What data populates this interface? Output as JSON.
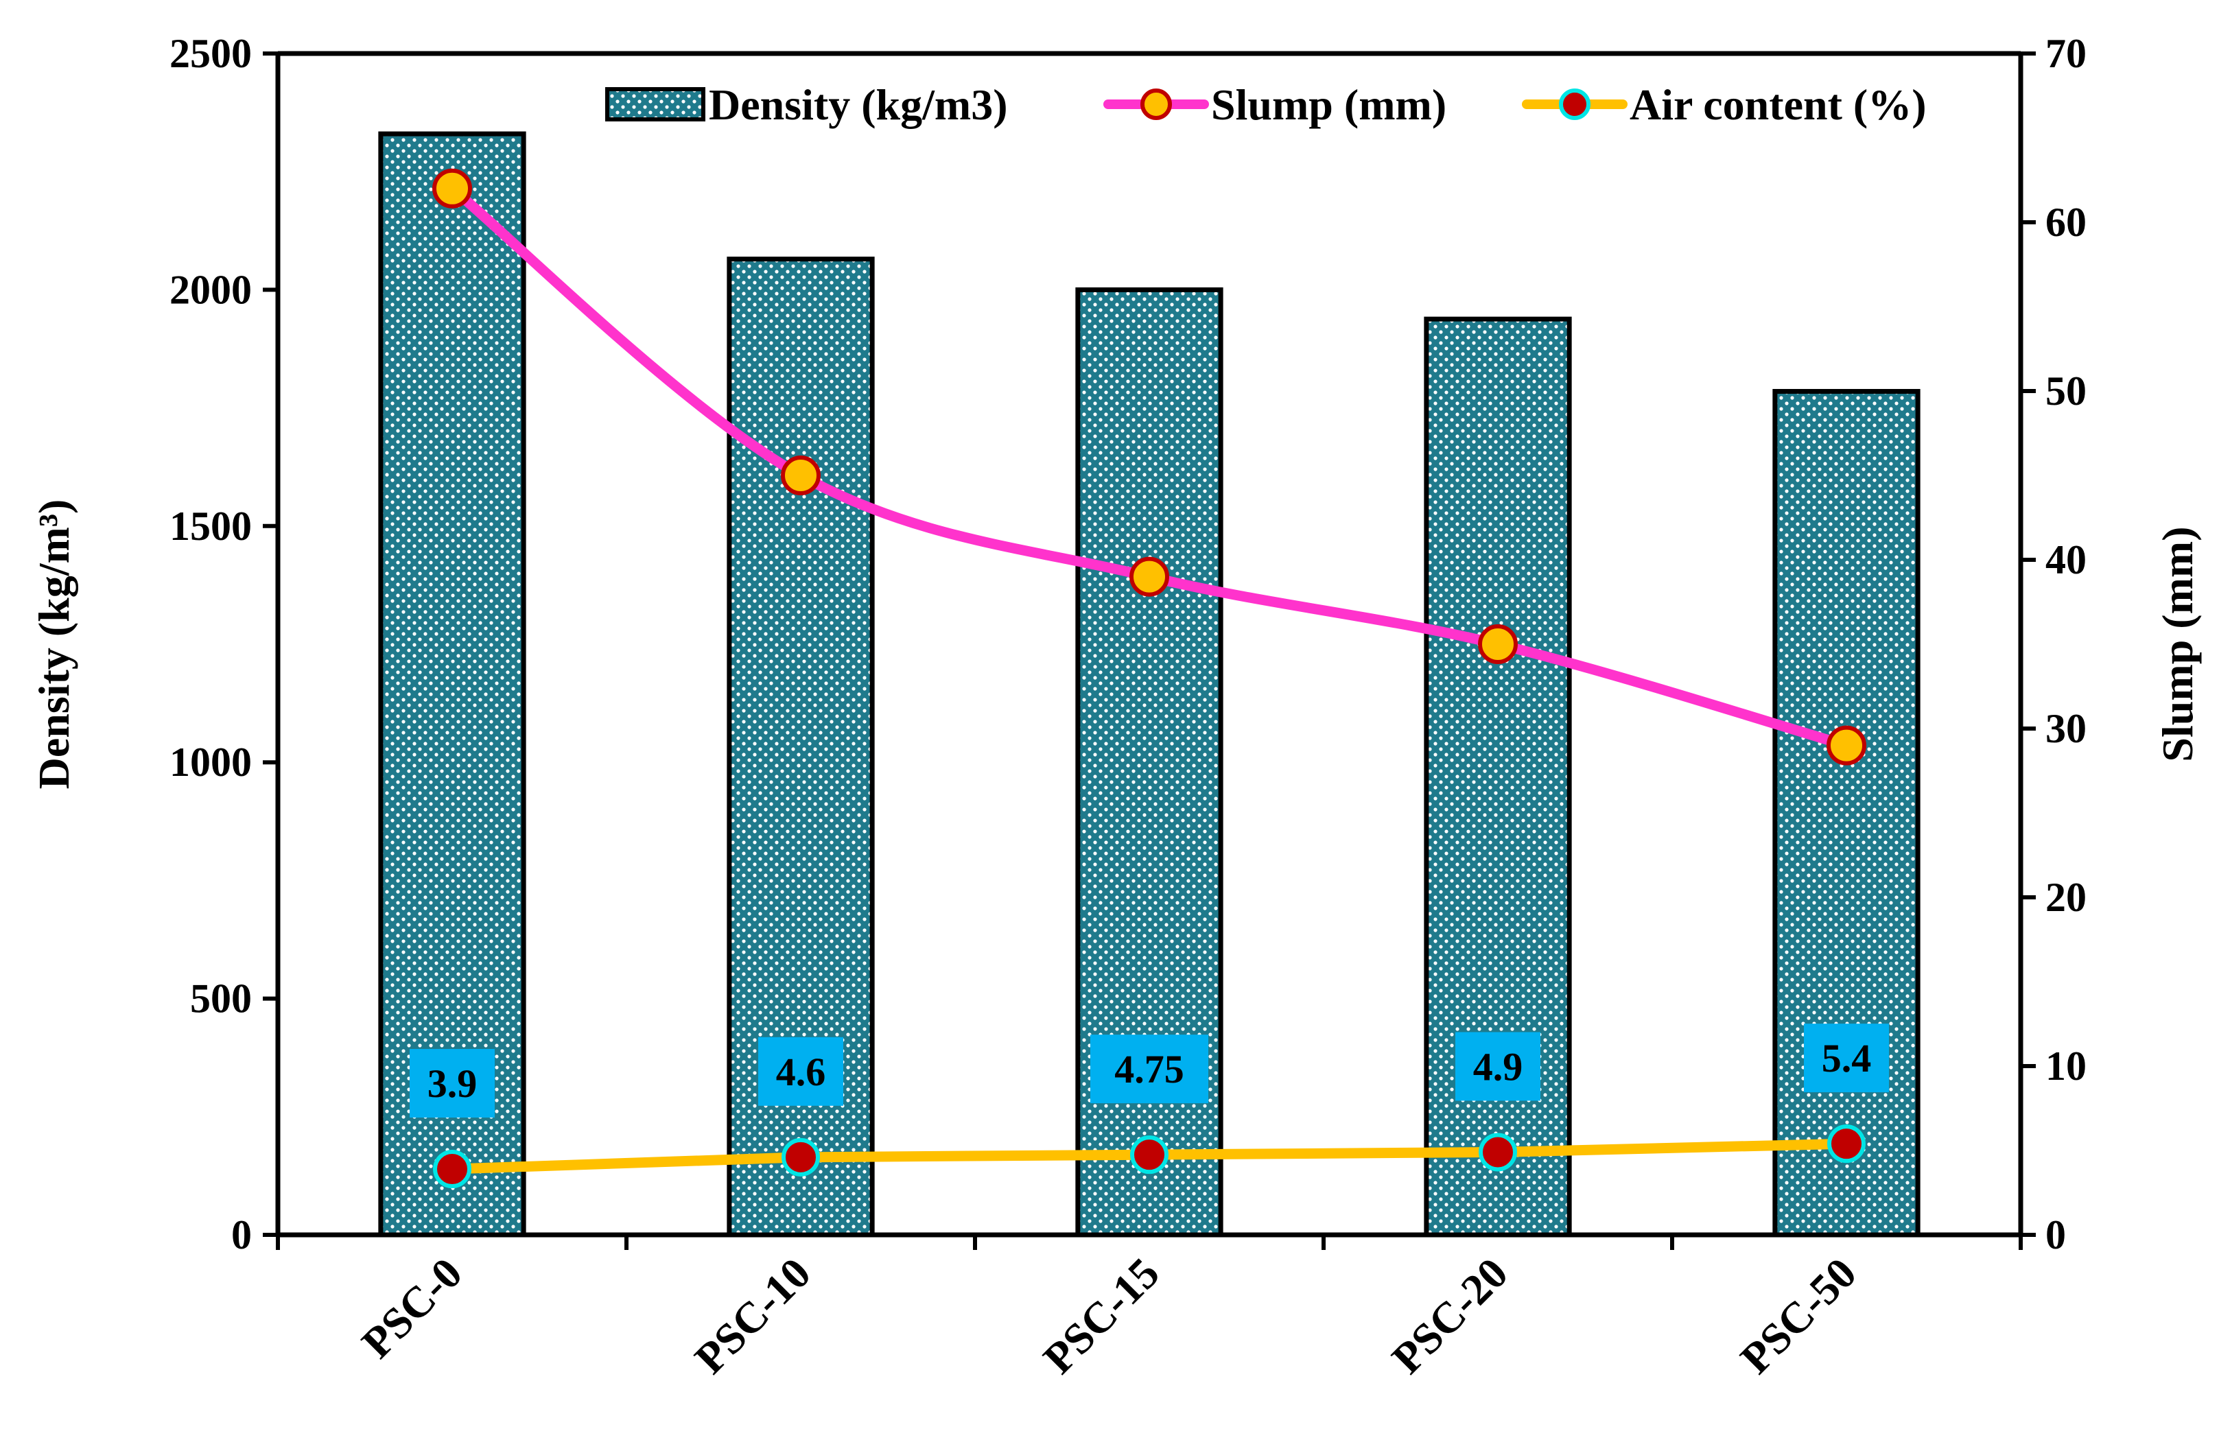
{
  "chart_data": {
    "type": "bar",
    "categories": [
      "PSC-0",
      "PSC-10",
      "PSC-15",
      "PSC-20",
      "PSC-50"
    ],
    "series": [
      {
        "name": "Density (kg/m3)",
        "kind": "bar",
        "axis": "left",
        "values": [
          2330,
          2065,
          2000,
          1938,
          1785
        ],
        "color": "#1f7a8c",
        "pattern": "white dots"
      },
      {
        "name": "Slump (mm)",
        "kind": "line",
        "axis": "right",
        "smooth": true,
        "values": [
          62,
          45,
          39,
          35,
          29
        ],
        "line_color": "#ff33cc",
        "marker_fill": "#ffc000",
        "marker_edge": "#c00000"
      },
      {
        "name": "Air content (%)",
        "kind": "line",
        "axis": "right",
        "values": [
          3.9,
          4.6,
          4.75,
          4.9,
          5.4
        ],
        "data_labels": [
          "3.9",
          "4.6",
          "4.75",
          "4.9",
          "5.4"
        ],
        "line_color": "#ffc000",
        "marker_fill": "#c00000",
        "marker_edge": "#00e5e5",
        "label_bg": "#00b0f0"
      }
    ],
    "ylabel": "Density (kg/m³)",
    "y2label": "Slump (mm)",
    "ylim": [
      0,
      2500
    ],
    "y2lim": [
      0,
      70
    ],
    "yticks": [
      0,
      500,
      1000,
      1500,
      2000,
      2500
    ],
    "y2ticks": [
      0,
      10,
      20,
      30,
      40,
      50,
      60,
      70
    ],
    "grid": false,
    "legend": "top"
  }
}
